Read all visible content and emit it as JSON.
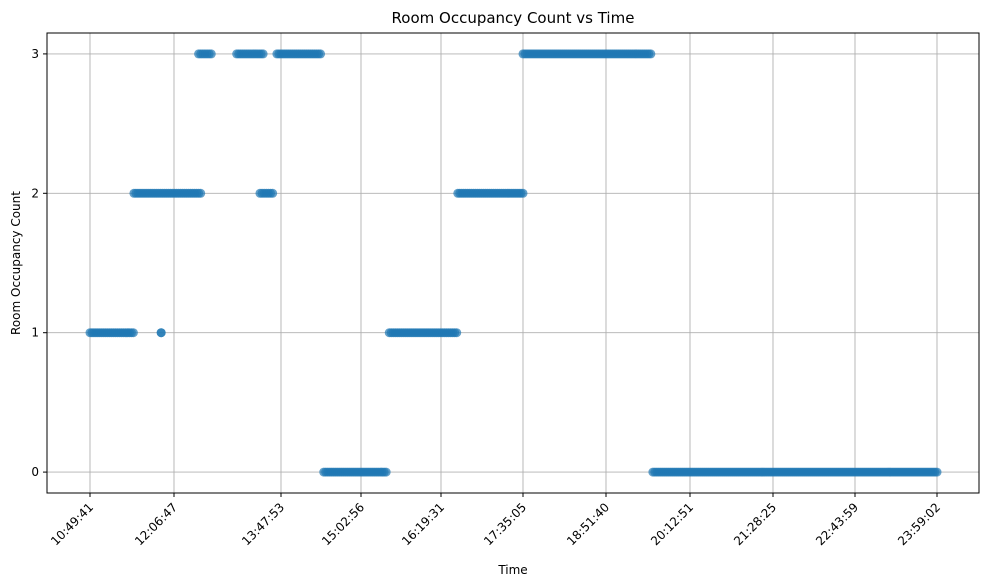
{
  "chart_data": {
    "type": "scatter",
    "title": "Room Occupancy Count vs Time",
    "xlabel": "Time",
    "ylabel": "Room Occupancy Count",
    "x_tick_labels": [
      "10:49:41",
      "12:06:47",
      "13:47:53",
      "15:02:56",
      "16:19:31",
      "17:35:05",
      "18:51:40",
      "20:12:51",
      "21:28:25",
      "22:43:59",
      "23:59:02"
    ],
    "x_tick_times": [
      "10:49:41",
      "12:06:47",
      "13:47:53",
      "15:02:56",
      "16:19:31",
      "17:35:05",
      "18:51:40",
      "20:12:51",
      "21:28:25",
      "22:43:59",
      "23:59:02"
    ],
    "y_ticks": [
      0,
      1,
      2,
      3
    ],
    "ylim": [
      -0.15,
      3.15
    ],
    "grid": true,
    "marker_color": "#1f77b4",
    "runs": [
      {
        "start": "10:49:41",
        "end": "11:29:30",
        "value": 1
      },
      {
        "start": "11:30:00",
        "end": "12:32:00",
        "value": 2
      },
      {
        "start": "11:55:00",
        "end": "11:55:00",
        "value": 1
      },
      {
        "start": "12:30:00",
        "end": "12:42:00",
        "value": 3
      },
      {
        "start": "13:06:00",
        "end": "13:31:00",
        "value": 3
      },
      {
        "start": "13:28:00",
        "end": "13:40:00",
        "value": 2
      },
      {
        "start": "13:44:00",
        "end": "14:25:00",
        "value": 3
      },
      {
        "start": "14:28:00",
        "end": "15:27:00",
        "value": 0
      },
      {
        "start": "15:30:00",
        "end": "16:34:00",
        "value": 1
      },
      {
        "start": "16:35:00",
        "end": "17:35:05",
        "value": 2
      },
      {
        "start": "17:35:05",
        "end": "19:35:00",
        "value": 3
      },
      {
        "start": "19:37:00",
        "end": "23:59:02",
        "value": 0
      }
    ]
  }
}
